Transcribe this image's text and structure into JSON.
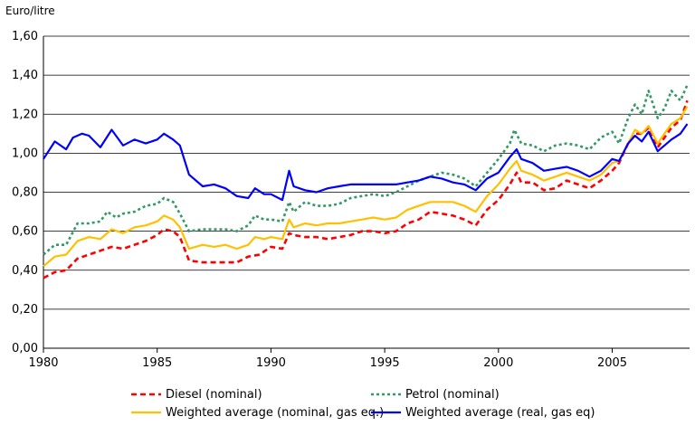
{
  "chart_data": {
    "type": "line",
    "unit_label": "Euro/litre",
    "xlabel": "",
    "ylabel": "",
    "xlim": [
      1980,
      2008.4
    ],
    "ylim": [
      0,
      1.6
    ],
    "x_ticks": [
      {
        "value": 1980,
        "label": "1980"
      },
      {
        "value": 1985,
        "label": "1985"
      },
      {
        "value": 1990,
        "label": "1990"
      },
      {
        "value": 1995,
        "label": "1995"
      },
      {
        "value": 2000,
        "label": "2000"
      },
      {
        "value": 2005,
        "label": "2005"
      }
    ],
    "y_ticks": [
      {
        "value": 0.0,
        "label": "0,00"
      },
      {
        "value": 0.2,
        "label": "0,20"
      },
      {
        "value": 0.4,
        "label": "0,40"
      },
      {
        "value": 0.6,
        "label": "0,60"
      },
      {
        "value": 0.8,
        "label": "0,80"
      },
      {
        "value": 1.0,
        "label": "1,00"
      },
      {
        "value": 1.2,
        "label": "1,20"
      },
      {
        "value": 1.4,
        "label": "1,40"
      },
      {
        "value": 1.6,
        "label": "1,60"
      }
    ],
    "grid": "horizontal",
    "legend_position": "bottom",
    "series": [
      {
        "name": "Diesel (nominal)",
        "color": "#ff0000",
        "style": "dashed",
        "points": [
          [
            1980,
            0.36
          ],
          [
            1980.5,
            0.39
          ],
          [
            1981,
            0.4
          ],
          [
            1981.5,
            0.46
          ],
          [
            1982,
            0.48
          ],
          [
            1982.5,
            0.5
          ],
          [
            1983,
            0.52
          ],
          [
            1983.5,
            0.51
          ],
          [
            1984,
            0.53
          ],
          [
            1984.5,
            0.55
          ],
          [
            1985,
            0.58
          ],
          [
            1985.3,
            0.61
          ],
          [
            1985.7,
            0.6
          ],
          [
            1986,
            0.57
          ],
          [
            1986.4,
            0.45
          ],
          [
            1987,
            0.44
          ],
          [
            1987.5,
            0.44
          ],
          [
            1988,
            0.44
          ],
          [
            1988.5,
            0.44
          ],
          [
            1989,
            0.47
          ],
          [
            1989.5,
            0.48
          ],
          [
            1990,
            0.52
          ],
          [
            1990.5,
            0.51
          ],
          [
            1990.8,
            0.59
          ],
          [
            1991,
            0.58
          ],
          [
            1991.5,
            0.57
          ],
          [
            1992,
            0.57
          ],
          [
            1992.5,
            0.56
          ],
          [
            1993,
            0.57
          ],
          [
            1993.5,
            0.58
          ],
          [
            1994,
            0.6
          ],
          [
            1994.5,
            0.6
          ],
          [
            1995,
            0.59
          ],
          [
            1995.5,
            0.6
          ],
          [
            1996,
            0.64
          ],
          [
            1996.5,
            0.66
          ],
          [
            1997,
            0.7
          ],
          [
            1997.5,
            0.69
          ],
          [
            1998,
            0.68
          ],
          [
            1998.5,
            0.66
          ],
          [
            1999,
            0.63
          ],
          [
            1999.5,
            0.71
          ],
          [
            2000,
            0.76
          ],
          [
            2000.5,
            0.84
          ],
          [
            2000.8,
            0.9
          ],
          [
            2001,
            0.85
          ],
          [
            2001.5,
            0.85
          ],
          [
            2002,
            0.81
          ],
          [
            2002.5,
            0.82
          ],
          [
            2003,
            0.86
          ],
          [
            2003.5,
            0.84
          ],
          [
            2004,
            0.82
          ],
          [
            2004.5,
            0.86
          ],
          [
            2005,
            0.91
          ],
          [
            2005.3,
            0.95
          ],
          [
            2005.7,
            1.05
          ],
          [
            2006,
            1.1
          ],
          [
            2006.3,
            1.1
          ],
          [
            2006.6,
            1.13
          ],
          [
            2007,
            1.03
          ],
          [
            2007.3,
            1.08
          ],
          [
            2007.6,
            1.13
          ],
          [
            2008,
            1.17
          ],
          [
            2008.3,
            1.27
          ]
        ]
      },
      {
        "name": "Petrol (nominal)",
        "color": "#339966",
        "style": "dotted",
        "points": [
          [
            1980,
            0.48
          ],
          [
            1980.5,
            0.53
          ],
          [
            1981,
            0.53
          ],
          [
            1981.5,
            0.64
          ],
          [
            1982,
            0.64
          ],
          [
            1982.5,
            0.65
          ],
          [
            1982.8,
            0.7
          ],
          [
            1983.2,
            0.67
          ],
          [
            1983.5,
            0.69
          ],
          [
            1984,
            0.7
          ],
          [
            1984.5,
            0.73
          ],
          [
            1985,
            0.74
          ],
          [
            1985.3,
            0.77
          ],
          [
            1985.7,
            0.75
          ],
          [
            1986,
            0.69
          ],
          [
            1986.4,
            0.6
          ],
          [
            1987,
            0.61
          ],
          [
            1987.5,
            0.61
          ],
          [
            1988,
            0.61
          ],
          [
            1988.5,
            0.6
          ],
          [
            1989,
            0.63
          ],
          [
            1989.3,
            0.68
          ],
          [
            1989.7,
            0.66
          ],
          [
            1990,
            0.66
          ],
          [
            1990.5,
            0.65
          ],
          [
            1990.8,
            0.75
          ],
          [
            1991,
            0.7
          ],
          [
            1991.5,
            0.75
          ],
          [
            1992,
            0.73
          ],
          [
            1992.5,
            0.73
          ],
          [
            1993,
            0.74
          ],
          [
            1993.5,
            0.77
          ],
          [
            1994,
            0.78
          ],
          [
            1994.5,
            0.79
          ],
          [
            1995,
            0.78
          ],
          [
            1995.5,
            0.8
          ],
          [
            1996,
            0.83
          ],
          [
            1996.5,
            0.86
          ],
          [
            1997,
            0.88
          ],
          [
            1997.5,
            0.9
          ],
          [
            1998,
            0.89
          ],
          [
            1998.5,
            0.87
          ],
          [
            1999,
            0.83
          ],
          [
            1999.5,
            0.9
          ],
          [
            2000,
            0.97
          ],
          [
            2000.5,
            1.05
          ],
          [
            2000.7,
            1.12
          ],
          [
            2001,
            1.05
          ],
          [
            2001.5,
            1.04
          ],
          [
            2002,
            1.01
          ],
          [
            2002.5,
            1.04
          ],
          [
            2003,
            1.05
          ],
          [
            2003.5,
            1.04
          ],
          [
            2004,
            1.02
          ],
          [
            2004.5,
            1.08
          ],
          [
            2005,
            1.11
          ],
          [
            2005.3,
            1.05
          ],
          [
            2005.7,
            1.18
          ],
          [
            2006,
            1.25
          ],
          [
            2006.3,
            1.2
          ],
          [
            2006.6,
            1.32
          ],
          [
            2007,
            1.18
          ],
          [
            2007.3,
            1.23
          ],
          [
            2007.6,
            1.32
          ],
          [
            2008,
            1.27
          ],
          [
            2008.3,
            1.35
          ]
        ]
      },
      {
        "name": "Weighted average (nominal, gas eq.)",
        "color": "#ffc000",
        "style": "solid",
        "points": [
          [
            1980,
            0.42
          ],
          [
            1980.5,
            0.47
          ],
          [
            1981,
            0.48
          ],
          [
            1981.5,
            0.55
          ],
          [
            1982,
            0.57
          ],
          [
            1982.5,
            0.56
          ],
          [
            1983,
            0.61
          ],
          [
            1983.5,
            0.59
          ],
          [
            1984,
            0.62
          ],
          [
            1984.5,
            0.63
          ],
          [
            1985,
            0.65
          ],
          [
            1985.3,
            0.68
          ],
          [
            1985.7,
            0.66
          ],
          [
            1986,
            0.62
          ],
          [
            1986.4,
            0.51
          ],
          [
            1987,
            0.53
          ],
          [
            1987.5,
            0.52
          ],
          [
            1988,
            0.53
          ],
          [
            1988.5,
            0.51
          ],
          [
            1989,
            0.53
          ],
          [
            1989.3,
            0.57
          ],
          [
            1989.7,
            0.56
          ],
          [
            1990,
            0.57
          ],
          [
            1990.5,
            0.56
          ],
          [
            1990.8,
            0.66
          ],
          [
            1991,
            0.62
          ],
          [
            1991.5,
            0.64
          ],
          [
            1992,
            0.63
          ],
          [
            1992.5,
            0.64
          ],
          [
            1993,
            0.64
          ],
          [
            1993.5,
            0.65
          ],
          [
            1994,
            0.66
          ],
          [
            1994.5,
            0.67
          ],
          [
            1995,
            0.66
          ],
          [
            1995.5,
            0.67
          ],
          [
            1996,
            0.71
          ],
          [
            1996.5,
            0.73
          ],
          [
            1997,
            0.75
          ],
          [
            1997.5,
            0.75
          ],
          [
            1998,
            0.75
          ],
          [
            1998.5,
            0.73
          ],
          [
            1999,
            0.7
          ],
          [
            1999.5,
            0.78
          ],
          [
            2000,
            0.84
          ],
          [
            2000.5,
            0.92
          ],
          [
            2000.8,
            0.96
          ],
          [
            2001,
            0.91
          ],
          [
            2001.5,
            0.89
          ],
          [
            2002,
            0.86
          ],
          [
            2002.5,
            0.88
          ],
          [
            2003,
            0.9
          ],
          [
            2003.5,
            0.88
          ],
          [
            2004,
            0.86
          ],
          [
            2004.5,
            0.89
          ],
          [
            2005,
            0.95
          ],
          [
            2005.3,
            0.96
          ],
          [
            2005.7,
            1.05
          ],
          [
            2006,
            1.12
          ],
          [
            2006.3,
            1.1
          ],
          [
            2006.6,
            1.14
          ],
          [
            2007,
            1.05
          ],
          [
            2007.3,
            1.1
          ],
          [
            2007.6,
            1.15
          ],
          [
            2008,
            1.18
          ],
          [
            2008.3,
            1.24
          ]
        ]
      },
      {
        "name": "Weighted average (real, gas eq)",
        "color": "#0000ff",
        "style": "solid",
        "points": [
          [
            1980,
            0.97
          ],
          [
            1980.5,
            1.06
          ],
          [
            1981,
            1.02
          ],
          [
            1981.3,
            1.08
          ],
          [
            1981.7,
            1.1
          ],
          [
            1982,
            1.09
          ],
          [
            1982.5,
            1.03
          ],
          [
            1983,
            1.12
          ],
          [
            1983.5,
            1.04
          ],
          [
            1984,
            1.07
          ],
          [
            1984.5,
            1.05
          ],
          [
            1985,
            1.07
          ],
          [
            1985.3,
            1.1
          ],
          [
            1985.7,
            1.07
          ],
          [
            1986,
            1.04
          ],
          [
            1986.4,
            0.89
          ],
          [
            1987,
            0.83
          ],
          [
            1987.5,
            0.84
          ],
          [
            1988,
            0.82
          ],
          [
            1988.5,
            0.78
          ],
          [
            1989,
            0.77
          ],
          [
            1989.3,
            0.82
          ],
          [
            1989.7,
            0.79
          ],
          [
            1990,
            0.79
          ],
          [
            1990.5,
            0.76
          ],
          [
            1990.8,
            0.91
          ],
          [
            1991,
            0.83
          ],
          [
            1991.5,
            0.81
          ],
          [
            1992,
            0.8
          ],
          [
            1992.5,
            0.82
          ],
          [
            1993,
            0.83
          ],
          [
            1993.5,
            0.84
          ],
          [
            1994,
            0.84
          ],
          [
            1994.5,
            0.84
          ],
          [
            1995,
            0.84
          ],
          [
            1995.5,
            0.84
          ],
          [
            1996,
            0.85
          ],
          [
            1996.5,
            0.86
          ],
          [
            1997,
            0.88
          ],
          [
            1997.5,
            0.87
          ],
          [
            1998,
            0.85
          ],
          [
            1998.5,
            0.84
          ],
          [
            1999,
            0.81
          ],
          [
            1999.5,
            0.87
          ],
          [
            2000,
            0.9
          ],
          [
            2000.5,
            0.98
          ],
          [
            2000.8,
            1.02
          ],
          [
            2001,
            0.97
          ],
          [
            2001.5,
            0.95
          ],
          [
            2002,
            0.91
          ],
          [
            2002.5,
            0.92
          ],
          [
            2003,
            0.93
          ],
          [
            2003.5,
            0.91
          ],
          [
            2004,
            0.88
          ],
          [
            2004.5,
            0.91
          ],
          [
            2005,
            0.97
          ],
          [
            2005.3,
            0.96
          ],
          [
            2005.7,
            1.05
          ],
          [
            2006,
            1.09
          ],
          [
            2006.3,
            1.06
          ],
          [
            2006.6,
            1.11
          ],
          [
            2007,
            1.01
          ],
          [
            2007.3,
            1.04
          ],
          [
            2007.6,
            1.07
          ],
          [
            2008,
            1.1
          ],
          [
            2008.3,
            1.15
          ]
        ]
      }
    ]
  }
}
